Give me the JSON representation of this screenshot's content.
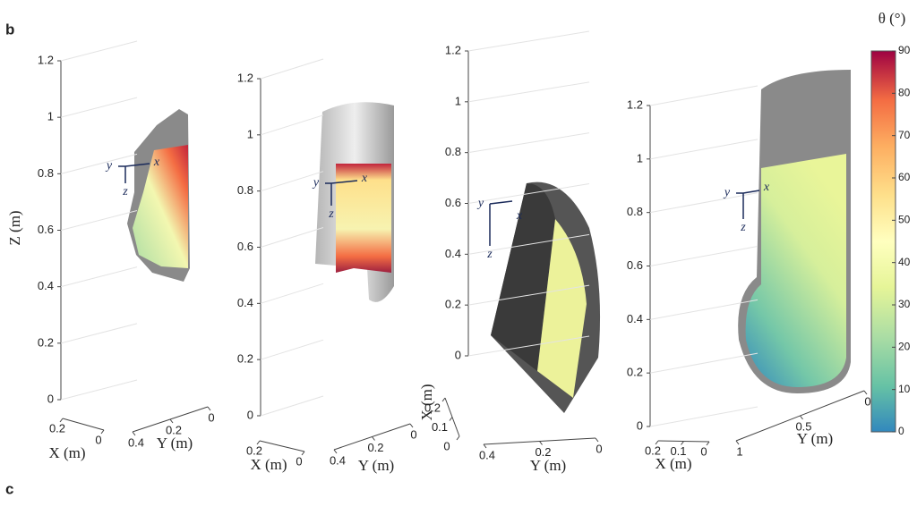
{
  "panel_labels": [
    "b",
    "c"
  ],
  "chart_data": [
    {
      "type": "surface3d",
      "xlabel": "X (m)",
      "ylabel": "Y (m)",
      "zlabel": "Z (m)",
      "xlim": [
        0,
        0.2
      ],
      "xticks": [
        0.2,
        0
      ],
      "ylim": [
        0,
        0.4
      ],
      "yticks": [
        0.4,
        0.2,
        0
      ],
      "zlim": [
        0,
        1.2
      ],
      "zticks": [
        0,
        0.2,
        0.4,
        0.6,
        0.8,
        1,
        1.2
      ],
      "triad": [
        "y",
        "x",
        "z"
      ]
    },
    {
      "type": "surface3d",
      "xlabel": "X (m)",
      "ylabel": "Y (m)",
      "xlim": [
        0,
        0.2
      ],
      "xticks": [
        0.2,
        0
      ],
      "ylim": [
        0,
        0.4
      ],
      "yticks": [
        0.4,
        0.2,
        0
      ],
      "zlim": [
        0,
        1.2
      ],
      "zticks": [
        0,
        0.2,
        0.4,
        0.6,
        0.8,
        1,
        1.2
      ],
      "triad": [
        "y",
        "x",
        "z"
      ]
    },
    {
      "type": "surface3d",
      "xlabel": "X (m)",
      "ylabel": "Y (m)",
      "xlim": [
        0,
        0.2
      ],
      "xticks": [
        0.2,
        0.1,
        0
      ],
      "ylim": [
        0,
        0.4
      ],
      "yticks": [
        0.4,
        0.2,
        0
      ],
      "zlim": [
        0,
        1.2
      ],
      "zticks": [
        0,
        0.2,
        0.4,
        0.6,
        0.8,
        1,
        1.2
      ],
      "triad": [
        "y",
        "x",
        "z"
      ]
    },
    {
      "type": "surface3d",
      "xlabel": "X (m)",
      "ylabel": "Y (m)",
      "xlim": [
        0,
        0.2
      ],
      "xticks": [
        0.2,
        0.1,
        0
      ],
      "ylim": [
        0,
        1
      ],
      "yticks": [
        1,
        0.5,
        0
      ],
      "zlim": [
        0,
        1.2
      ],
      "zticks": [
        0,
        0.2,
        0.4,
        0.6,
        0.8,
        1,
        1.2
      ],
      "triad": [
        "y",
        "x",
        "z"
      ],
      "colorbar": {
        "title": "θ (°)",
        "lim": [
          0,
          90
        ],
        "ticks": [
          0,
          10,
          20,
          30,
          40,
          50,
          60,
          70,
          80,
          90
        ]
      }
    }
  ]
}
